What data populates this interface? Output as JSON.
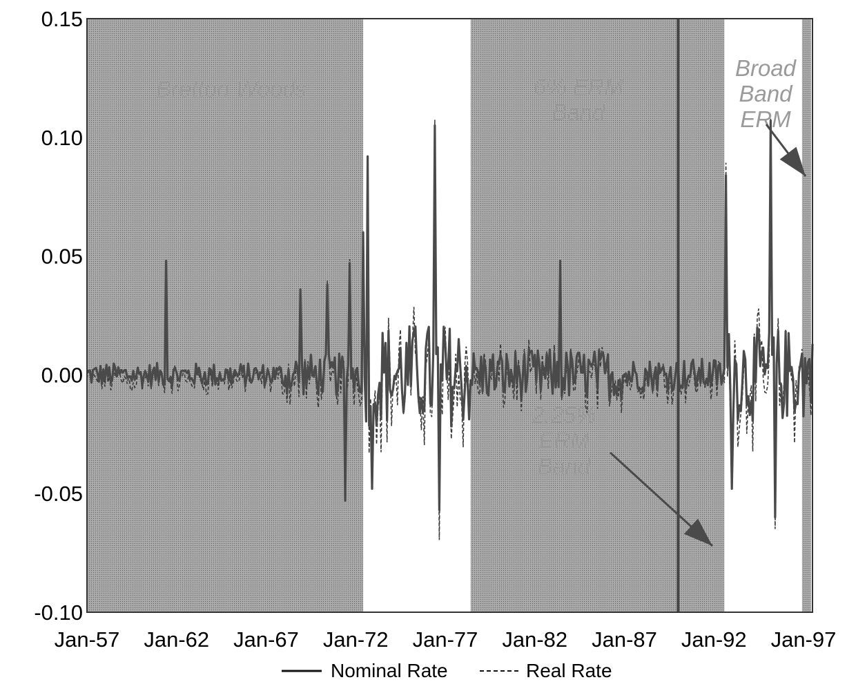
{
  "chart_data": {
    "type": "line",
    "title": "",
    "xlabel": "",
    "ylabel": "",
    "ylim": [
      -0.1,
      0.15
    ],
    "x_ticks": [
      "Jan-57",
      "Jan-62",
      "Jan-67",
      "Jan-72",
      "Jan-77",
      "Jan-82",
      "Jan-87",
      "Jan-92",
      "Jan-97"
    ],
    "y_ticks": [
      "0.15",
      "0.10",
      "0.05",
      "0.00",
      "-0.05",
      "-0.10"
    ],
    "legend": [
      {
        "label": "Nominal Rate",
        "style": "solid"
      },
      {
        "label": "Real Rate",
        "style": "dashed"
      }
    ],
    "legend_placement": "bottom",
    "regimes": [
      {
        "label": "Bretton Woods",
        "from": "1957-01",
        "to": "1972-06",
        "shaded": true
      },
      {
        "label": "",
        "from": "1972-06",
        "to": "1978-06",
        "shaded": false
      },
      {
        "label": "6% ERM Band",
        "from": "1978-06",
        "to": "1992-08",
        "shaded": true
      },
      {
        "label": "Broad Band ERM",
        "from": "1992-08",
        "to": "1996-12",
        "shaded": false
      },
      {
        "label": "",
        "from": "1996-12",
        "to": "1997-06",
        "shaded": true
      }
    ],
    "vertical_line": "1990-01",
    "annotations": [
      {
        "text": "2.25% ERM Band",
        "arrow_to": "1990-12"
      },
      {
        "text": "Broad Band ERM",
        "arrow_to": "1997-03"
      }
    ],
    "spikes": [
      {
        "date": "1961-06",
        "value": 0.048
      },
      {
        "date": "1968-12",
        "value": 0.036
      },
      {
        "date": "1970-06",
        "value": 0.038
      },
      {
        "date": "1971-06",
        "value": -0.053
      },
      {
        "date": "1971-09",
        "value": 0.047
      },
      {
        "date": "1972-06",
        "value": 0.06
      },
      {
        "date": "1972-09",
        "value": 0.092
      },
      {
        "date": "1972-12",
        "value": -0.048
      },
      {
        "date": "1976-06",
        "value": 0.105
      },
      {
        "date": "1976-09",
        "value": -0.057
      },
      {
        "date": "1983-06",
        "value": 0.048
      },
      {
        "date": "1992-09",
        "value": 0.084
      },
      {
        "date": "1993-01",
        "value": -0.048
      },
      {
        "date": "1995-03",
        "value": 0.107
      },
      {
        "date": "1995-06",
        "value": -0.06
      }
    ],
    "grid": false
  },
  "colors": {
    "shaded": "#9e9e9e",
    "line": "#444444",
    "text": "#000000"
  }
}
